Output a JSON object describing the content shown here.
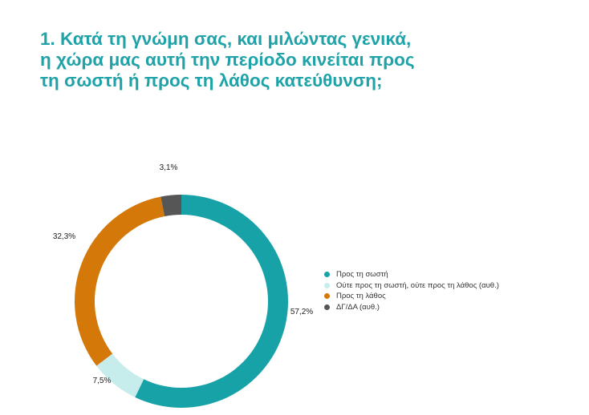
{
  "title": {
    "line1": "1. Κατά τη γνώμη σας, και μιλώντας γενικά,",
    "line2": "η χώρα μας αυτή την περίοδο κινείται προς",
    "line3": "τη σωστή ή προς τη λάθος κατεύθυνση;"
  },
  "chart_data": {
    "type": "pie",
    "variant": "donut",
    "title": "1. Κατά τη γνώμη σας, και μιλώντας γενικά, η χώρα μας αυτή την περίοδο κινείται προς τη σωστή ή προς τη λάθος κατεύθυνση;",
    "slices": [
      {
        "label": "Προς τη σωστή",
        "value": 57.2,
        "display": "57,2%",
        "color": "#17a2a7"
      },
      {
        "label": "Ούτε προς τη σωστή, ούτε προς τη λάθος (αυθ.)",
        "value": 7.5,
        "display": "7,5%",
        "color": "#c7ecec"
      },
      {
        "label": "Προς τη λάθος",
        "value": 32.3,
        "display": "32,3%",
        "color": "#d4780a"
      },
      {
        "label": "ΔΓ/ΔΑ (αυθ.)",
        "value": 3.1,
        "display": "3,1%",
        "color": "#565656"
      }
    ],
    "legend_position": "right"
  }
}
